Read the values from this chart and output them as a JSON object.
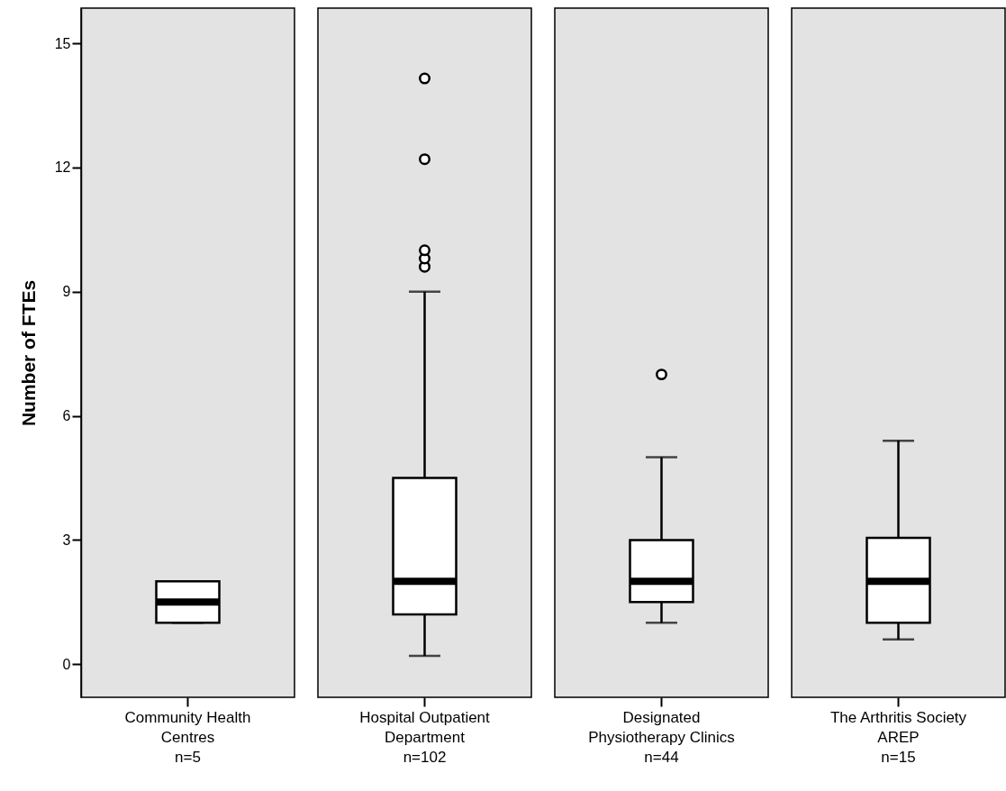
{
  "chart_data": {
    "type": "box",
    "ylabel": "Number of FTEs",
    "categories": [
      "Community Health\nCentres\nn=5",
      "Hospital Outpatient\nDepartment\nn=102",
      "Designated\nPhysiotherapy Clinics\nn=44",
      "The Arthritis Society\nAREP\nn=15"
    ],
    "boxes": [
      {
        "low": 1,
        "q1": 1,
        "median": 1.5,
        "q3": 2,
        "high": 2
      },
      {
        "low": 0.2,
        "q1": 1.2,
        "median": 2,
        "q3": 4.5,
        "high": 9,
        "outliers": [
          9.6,
          9.8,
          10,
          12.2,
          14.15
        ]
      },
      {
        "low": 1,
        "q1": 1.5,
        "median": 2,
        "q3": 3,
        "high": 5,
        "outliers": [
          7
        ]
      },
      {
        "low": 0.6,
        "q1": 1,
        "median": 2,
        "q3": 3.05,
        "high": 5.4
      }
    ],
    "ylim": [
      -0.8,
      15.85
    ],
    "yticks": [
      0,
      3,
      6,
      9,
      12,
      15
    ],
    "marker": "circle"
  }
}
